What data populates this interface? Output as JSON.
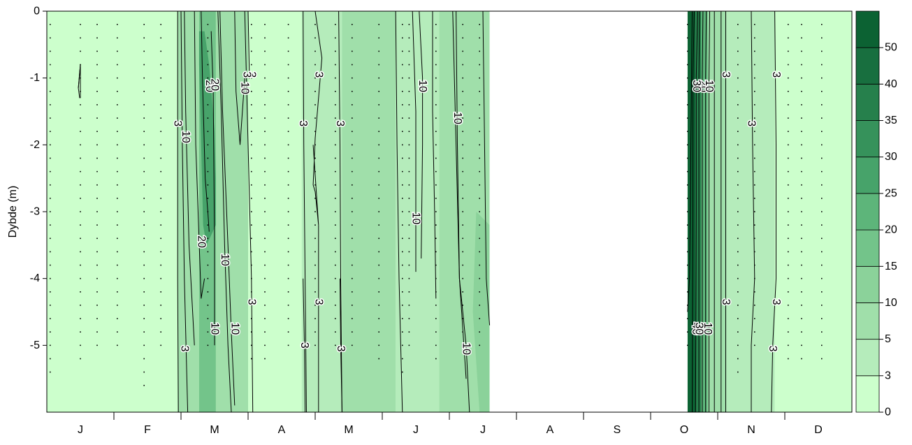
{
  "chart_data": {
    "type": "heatmap",
    "subtype": "depth-time contour plot",
    "ylabel": "Dybde (m)",
    "xlabel": "",
    "ylim": [
      -6,
      0
    ],
    "y_ticks": [
      "0",
      "-1",
      "-2",
      "-3",
      "-4",
      "-5"
    ],
    "y_tick_values": [
      0,
      -1,
      -2,
      -3,
      -4,
      -5
    ],
    "x_ticks": [
      "J",
      "F",
      "M",
      "A",
      "M",
      "J",
      "J",
      "A",
      "S",
      "O",
      "N",
      "D"
    ],
    "x_range_months": [
      0,
      12
    ],
    "colorbar": {
      "levels": [
        0,
        3,
        5,
        10,
        15,
        20,
        25,
        30,
        35,
        40,
        50
      ],
      "tick_labels": [
        "0",
        "3",
        "5",
        "10",
        "15",
        "20",
        "25",
        "30",
        "35",
        "40",
        "50"
      ],
      "colors": [
        "#ccffcc",
        "#b5ecbb",
        "#a0dfaa",
        "#8bd29a",
        "#73c48a",
        "#5db57a",
        "#47a36a",
        "#36925b",
        "#26804c",
        "#186f3f",
        "#0c6233"
      ]
    },
    "missing_data": {
      "from_month": 6.6,
      "to_month": 9.55
    },
    "bands": [
      {
        "from": 0.0,
        "to": 1.95,
        "level": 0
      },
      {
        "from": 1.95,
        "to": 2.27,
        "level": 5
      },
      {
        "from": 2.27,
        "to": 2.52,
        "level": 15
      },
      {
        "from": 2.52,
        "to": 3.0,
        "level": 5
      },
      {
        "from": 3.0,
        "to": 3.8,
        "level": 0
      },
      {
        "from": 3.8,
        "to": 4.4,
        "level": 3
      },
      {
        "from": 4.4,
        "to": 5.2,
        "level": 5
      },
      {
        "from": 5.2,
        "to": 5.85,
        "level": 3
      },
      {
        "from": 5.85,
        "to": 6.6,
        "level": 5
      },
      {
        "from": 9.55,
        "to": 9.67,
        "level": 50
      },
      {
        "from": 9.67,
        "to": 9.75,
        "level": 35
      },
      {
        "from": 9.75,
        "to": 9.85,
        "level": 20
      },
      {
        "from": 9.85,
        "to": 10.12,
        "level": 5
      },
      {
        "from": 10.12,
        "to": 10.85,
        "level": 3
      },
      {
        "from": 10.85,
        "to": 12.0,
        "level": 0
      }
    ],
    "overlays": [
      {
        "x": [
          2.27,
          2.35,
          2.42,
          2.5,
          2.52,
          2.52,
          2.38,
          2.33,
          2.3,
          2.27
        ],
        "y": [
          -0.3,
          -0.3,
          -0.8,
          -1.8,
          -2.5,
          -3.2,
          -3.5,
          -3.2,
          -2.0,
          -0.8
        ],
        "level": 25
      },
      {
        "x": [
          6.4,
          6.6,
          6.6,
          6.45,
          6.35
        ],
        "y": [
          -3.0,
          -3.2,
          -6.0,
          -6.0,
          -4.5
        ],
        "level": 10
      }
    ],
    "contours": [
      {
        "x": [
          0.5,
          0.47,
          0.49
        ],
        "y": [
          -0.8,
          -1.15,
          -1.3
        ],
        "label": ""
      },
      {
        "x": [
          0.47,
          0.5,
          0.5
        ],
        "y": [
          -1.15,
          -0.8,
          -1.3
        ],
        "label": ""
      },
      {
        "x": [
          1.95,
          1.95,
          1.95,
          1.96
        ],
        "y": [
          0,
          -2.0,
          -4.0,
          -6.0
        ],
        "label": "3",
        "lx": 1.95,
        "ly": -1.68
      },
      {
        "x": [
          2.0,
          2.02,
          2.05,
          2.1
        ],
        "y": [
          0,
          -2.0,
          -4.0,
          -6.0
        ],
        "label": "3",
        "lx": 2.05,
        "ly": -5.05
      },
      {
        "x": [
          2.05,
          2.07,
          2.12,
          2.2
        ],
        "y": [
          0,
          -1.5,
          -3.5,
          -5.0
        ],
        "label": "10",
        "lx": 2.07,
        "ly": -1.88
      },
      {
        "x": [
          2.2,
          2.22,
          2.3,
          2.35
        ],
        "y": [
          0,
          -2.0,
          -4.3,
          -4.0
        ],
        "label": "20",
        "lx": 2.3,
        "ly": -3.45
      },
      {
        "x": [
          2.3,
          2.32,
          2.36,
          2.4,
          2.42
        ],
        "y": [
          0,
          -1.0,
          -2.5,
          -3.0,
          -3.3
        ],
        "label": "20",
        "lx": 2.42,
        "ly": -1.12
      },
      {
        "x": [
          2.45,
          2.48,
          2.5,
          2.5
        ],
        "y": [
          -0.3,
          -1.2,
          -3.5,
          -5.0
        ],
        "label": "10",
        "lx": 2.5,
        "ly": -4.75
      },
      {
        "x": [
          2.55,
          2.6,
          2.65,
          2.7,
          2.75
        ],
        "y": [
          0,
          -1.5,
          -3.5,
          -5.0,
          -6.0
        ],
        "label": "10",
        "lx": 2.65,
        "ly": -3.72
      },
      {
        "x": [
          2.58,
          2.62,
          2.7,
          2.75,
          2.8
        ],
        "y": [
          0,
          -1.5,
          -3.5,
          -4.8,
          -5.9
        ],
        "label": "10",
        "lx": 2.8,
        "ly": -4.75
      },
      {
        "x": [
          2.8,
          2.82,
          2.88,
          2.95
        ],
        "y": [
          0,
          -1.2,
          -2.0,
          -1.0
        ],
        "label": "10",
        "lx": 2.95,
        "ly": -1.15
      },
      {
        "x": [
          2.95,
          3.0,
          3.05,
          3.07
        ],
        "y": [
          0,
          -2.0,
          -4.0,
          -6.0
        ],
        "label": "3",
        "lx": 3.05,
        "ly": -4.35
      },
      {
        "x": [
          3.0,
          3.02,
          3.05
        ],
        "y": [
          0,
          -1.0,
          -0.95
        ],
        "label": "3",
        "lx": 3.05,
        "ly": -0.95
      },
      {
        "x": [
          3.82,
          3.83,
          3.85,
          3.87
        ],
        "y": [
          0,
          -2.0,
          -4.0,
          -6.0
        ],
        "label": "3",
        "lx": 3.82,
        "ly": -1.68
      },
      {
        "x": [
          3.82,
          3.84,
          3.85
        ],
        "y": [
          -4.0,
          -5.0,
          -6.0
        ],
        "label": "3",
        "lx": 3.84,
        "ly": -5.0
      },
      {
        "x": [
          4.0,
          4.1,
          4.0,
          3.97,
          4.0,
          4.05,
          3.97
        ],
        "y": [
          0,
          -0.7,
          -1.9,
          -2.6,
          -2.7,
          -3.2,
          -2.0
        ],
        "label": "3",
        "lx": 4.05,
        "ly": -0.95
      },
      {
        "x": [
          4.05,
          4.05,
          4.05,
          4.05
        ],
        "y": [
          -3.2,
          -4.0,
          -5.5,
          -6.0
        ],
        "label": "3",
        "lx": 4.05,
        "ly": -4.35
      },
      {
        "x": [
          4.35,
          4.37,
          4.38,
          4.4
        ],
        "y": [
          0,
          -2.0,
          -4.0,
          -6.0
        ],
        "label": "3",
        "lx": 4.37,
        "ly": -1.68
      },
      {
        "x": [
          4.37,
          4.38,
          4.4
        ],
        "y": [
          -4.0,
          -5.0,
          -6.0
        ],
        "label": "3",
        "lx": 4.38,
        "ly": -5.05
      },
      {
        "x": [
          5.2,
          5.22,
          5.25,
          5.3
        ],
        "y": [
          0,
          -2.0,
          -4.0,
          -6.0
        ],
        "label": "",
        "lx": 5.22,
        "ly": -2.0
      },
      {
        "x": [
          5.45,
          5.5,
          5.5,
          5.5
        ],
        "y": [
          0,
          -1.5,
          -3.0,
          -3.9
        ],
        "label": "10",
        "lx": 5.5,
        "ly": -3.1
      },
      {
        "x": [
          5.55,
          5.6,
          5.6,
          5.58
        ],
        "y": [
          0,
          -1.0,
          -2.0,
          -3.7
        ],
        "label": "10",
        "lx": 5.6,
        "ly": -1.12
      },
      {
        "x": [
          5.75,
          5.75,
          5.78,
          5.8
        ],
        "y": [
          0,
          -1.5,
          -3.0,
          -4.3
        ],
        "label": "",
        "lx": 5.75,
        "ly": -1.5
      },
      {
        "x": [
          6.1,
          6.12,
          6.15,
          6.25,
          6.3
        ],
        "y": [
          0,
          -2.0,
          -4.0,
          -5.0,
          -6.0
        ],
        "label": "10",
        "lx": 6.12,
        "ly": -1.6
      },
      {
        "x": [
          6.05,
          6.1,
          6.15,
          6.25
        ],
        "y": [
          0,
          -2.0,
          -4.0,
          -5.5
        ],
        "label": "10",
        "lx": 6.25,
        "ly": -5.05
      },
      {
        "x": [
          6.5,
          6.55,
          6.6
        ],
        "y": [
          0,
          -4.0,
          -4.7
        ],
        "label": "",
        "lx": 6.55,
        "ly": -4.0
      },
      {
        "x": [
          9.62,
          9.6,
          9.58,
          9.55
        ],
        "y": [
          0,
          -2.0,
          -4.0,
          -4.5
        ],
        "label": "",
        "lx": 9.6,
        "ly": -2.0
      },
      {
        "x": [
          9.65,
          9.63,
          9.63,
          9.62
        ],
        "y": [
          0,
          -1.0,
          -3.0,
          -6.0
        ],
        "label": "40",
        "lx": 9.67,
        "ly": -4.75
      },
      {
        "x": [
          9.7,
          9.68,
          9.68,
          9.67
        ],
        "y": [
          0,
          -1.0,
          -3.0,
          -6.0
        ],
        "label": "",
        "lx": 9.68,
        "ly": -1.0
      },
      {
        "x": [
          9.73,
          9.72,
          9.72,
          9.72
        ],
        "y": [
          0,
          -1.0,
          -3.0,
          -6.0
        ],
        "label": "30",
        "lx": 9.72,
        "ly": -4.75
      },
      {
        "x": [
          9.78,
          9.77,
          9.77,
          9.77
        ],
        "y": [
          0,
          -1.0,
          -3.0,
          -6.0
        ],
        "label": "20",
        "lx": 9.78,
        "ly": -1.12
      },
      {
        "x": [
          9.83,
          9.82,
          9.82,
          9.82
        ],
        "y": [
          0,
          -1.0,
          -3.0,
          -6.0
        ],
        "label": "",
        "lx": 9.82,
        "ly": -1.0
      },
      {
        "x": [
          9.88,
          9.87,
          9.87,
          9.87
        ],
        "y": [
          0,
          -1.0,
          -3.0,
          -6.0
        ],
        "label": "10",
        "lx": 9.85,
        "ly": -4.75
      },
      {
        "x": [
          9.95,
          9.95,
          9.95,
          9.95
        ],
        "y": [
          0,
          -2.0,
          -4.0,
          -6.0
        ],
        "label": "",
        "lx": 9.95,
        "ly": -2.0
      },
      {
        "x": [
          10.05,
          10.05,
          10.05,
          10.05
        ],
        "y": [
          0,
          -2.0,
          -4.0,
          -6.0
        ],
        "label": "",
        "lx": 10.05,
        "ly": -2.0
      },
      {
        "x": [
          10.12,
          10.12,
          10.12,
          10.12
        ],
        "y": [
          0,
          -2.0,
          -4.0,
          -6.0
        ],
        "label": "3",
        "lx": 10.12,
        "ly": -0.95
      },
      {
        "x": [
          10.5,
          10.52,
          10.55,
          10.5,
          10.5
        ],
        "y": [
          0,
          -2.0,
          -4.0,
          -5.0,
          -6.0
        ],
        "label": "3",
        "lx": 10.5,
        "ly": -1.68
      },
      {
        "x": [
          10.85,
          10.87,
          10.87,
          10.82,
          10.8
        ],
        "y": [
          0,
          -2.0,
          -4.0,
          -5.0,
          -6.0
        ],
        "label": "3",
        "lx": 10.82,
        "ly": -5.05
      }
    ],
    "extra_labels": [
      {
        "text": "3",
        "x": 2.98,
        "y": -0.95
      },
      {
        "text": "3",
        "x": 10.87,
        "y": -0.95
      },
      {
        "text": "3",
        "x": 10.87,
        "y": -4.35
      },
      {
        "text": "3",
        "x": 10.12,
        "y": -4.35
      },
      {
        "text": "20",
        "x": 2.5,
        "y": -1.1
      },
      {
        "text": "30",
        "x": 9.68,
        "y": -1.12
      },
      {
        "text": "10",
        "x": 9.87,
        "y": -1.12
      }
    ],
    "sample_casts": [
      {
        "x": 0.05,
        "depth": 5.5
      },
      {
        "x": 0.5,
        "depth": 5.2
      },
      {
        "x": 0.75,
        "depth": 5.0
      },
      {
        "x": 1.05,
        "depth": 5.1
      },
      {
        "x": 1.45,
        "depth": 5.7
      },
      {
        "x": 1.7,
        "depth": 5.0
      },
      {
        "x": 2.4,
        "depth": 5.0
      },
      {
        "x": 3.05,
        "depth": 5.3
      },
      {
        "x": 3.25,
        "depth": 5.3
      },
      {
        "x": 3.6,
        "depth": 5.0
      },
      {
        "x": 4.0,
        "depth": 5.0
      },
      {
        "x": 4.3,
        "depth": 5.0
      },
      {
        "x": 4.55,
        "depth": 5.0
      },
      {
        "x": 4.95,
        "depth": 5.3
      },
      {
        "x": 5.3,
        "depth": 5.5
      },
      {
        "x": 5.4,
        "depth": 5.0
      },
      {
        "x": 5.8,
        "depth": 5.2
      },
      {
        "x": 6.2,
        "depth": 5.1
      },
      {
        "x": 6.45,
        "depth": 5.0
      },
      {
        "x": 9.55,
        "depth": 5.0
      },
      {
        "x": 10.3,
        "depth": 5.5
      },
      {
        "x": 10.55,
        "depth": 5.0
      },
      {
        "x": 11.05,
        "depth": 5.2
      },
      {
        "x": 11.25,
        "depth": 5.3
      },
      {
        "x": 11.55,
        "depth": 5.2
      }
    ]
  }
}
